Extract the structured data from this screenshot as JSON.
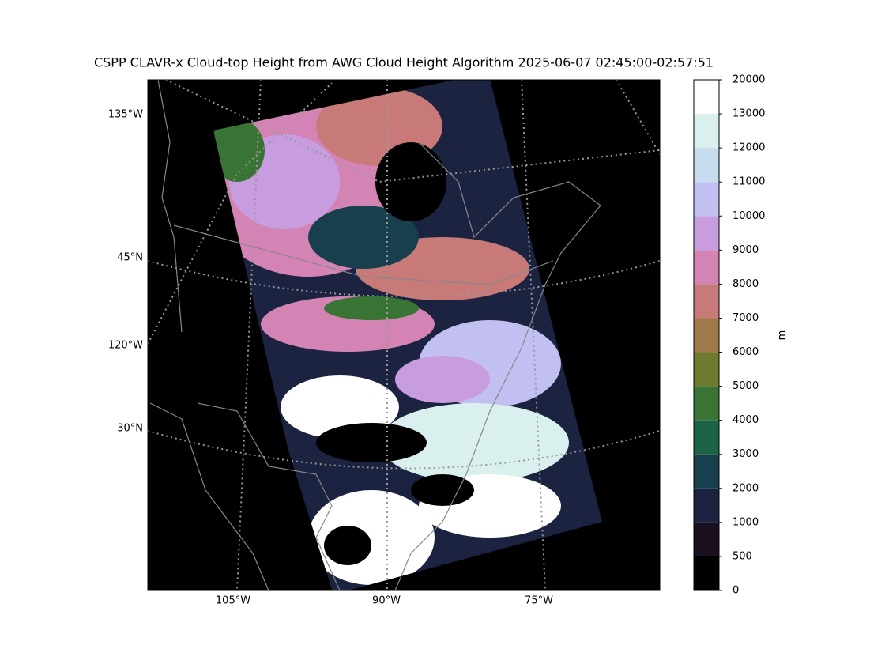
{
  "title": "CSPP CLAVR-x Cloud-top Height from AWG Cloud Height Algorithm 2025-06-07 02:45:00-02:57:51",
  "map": {
    "left_labels": [
      "135°W",
      "45°N",
      "120°W",
      "30°N"
    ],
    "bottom_labels": [
      "105°W",
      "90°W",
      "75°W"
    ]
  },
  "colorbar": {
    "label": "m",
    "ticks": [
      0,
      500,
      1000,
      2000,
      3000,
      4000,
      5000,
      6000,
      7000,
      8000,
      9000,
      10000,
      11000,
      12000,
      13000,
      20000
    ],
    "colors": [
      "#000000",
      "#1a0f1f",
      "#1b2341",
      "#173f4d",
      "#1b6445",
      "#3a7435",
      "#6e7a2e",
      "#a07a48",
      "#c87a78",
      "#d384b4",
      "#c89ddf",
      "#c2c0f0",
      "#c8dcf0",
      "#d9f0ee",
      "#ffffff"
    ]
  }
}
